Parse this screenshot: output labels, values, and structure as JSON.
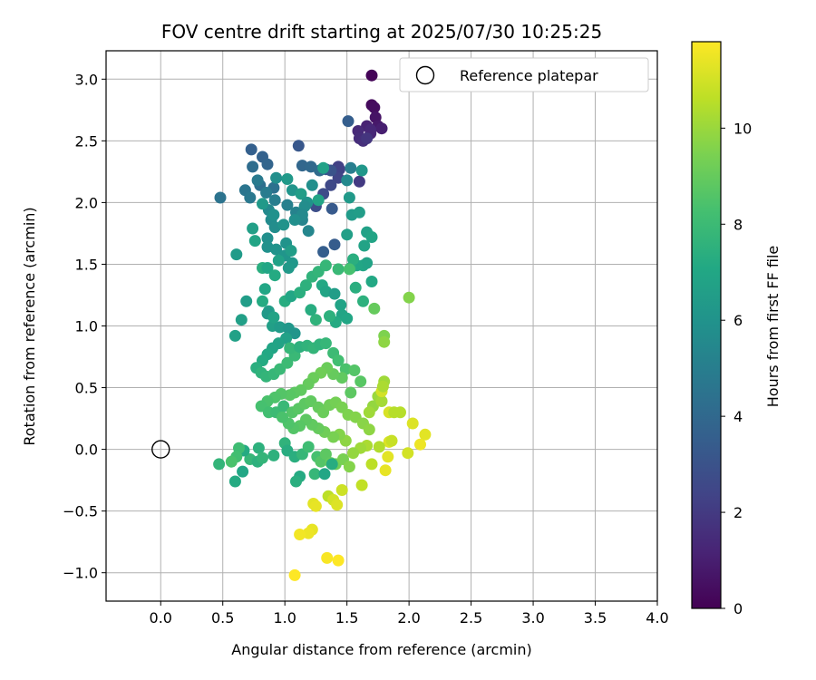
{
  "chart_data": {
    "type": "scatter",
    "title": "FOV centre drift starting at 2025/07/30 10:25:25",
    "xlabel": "Angular distance from reference (arcmin)",
    "ylabel": "Rotation from reference (arcmin)",
    "xlim": [
      -0.44,
      4.0
    ],
    "ylim": [
      -1.23,
      3.23
    ],
    "xticks": [
      "0.0",
      "0.5",
      "1.0",
      "1.5",
      "2.0",
      "2.5",
      "3.0",
      "3.5",
      "4.0"
    ],
    "yticks": [
      "−1.0",
      "−0.5",
      "0.0",
      "0.5",
      "1.0",
      "1.5",
      "2.0",
      "2.5",
      "3.0"
    ],
    "grid": true,
    "legend": {
      "position": "top-right",
      "entries": [
        "Reference platepar"
      ]
    },
    "reference_point": {
      "label": "Reference platepar",
      "x": 0.0,
      "y": 0.0,
      "marker": "open-circle"
    },
    "colorbar": {
      "label": "Hours from first FF file",
      "range": [
        0,
        11.8
      ],
      "ticks": [
        "0",
        "2",
        "4",
        "6",
        "8",
        "10"
      ],
      "colormap": "viridis"
    },
    "points": [
      [
        1.7,
        3.03,
        0.1
      ],
      [
        1.7,
        2.79,
        0.3
      ],
      [
        1.72,
        2.77,
        0.4
      ],
      [
        1.73,
        2.69,
        0.6
      ],
      [
        1.75,
        2.62,
        0.8
      ],
      [
        1.78,
        2.6,
        1.0
      ],
      [
        1.66,
        2.62,
        1.1
      ],
      [
        1.69,
        2.56,
        1.2
      ],
      [
        1.59,
        2.58,
        1.4
      ],
      [
        1.6,
        2.52,
        1.5
      ],
      [
        1.63,
        2.5,
        1.6
      ],
      [
        1.69,
        2.59,
        1.3
      ],
      [
        1.66,
        2.52,
        1.8
      ],
      [
        1.6,
        2.17,
        2.0
      ],
      [
        1.43,
        2.29,
        2.2
      ],
      [
        1.44,
        2.27,
        2.3
      ],
      [
        1.43,
        2.2,
        2.4
      ],
      [
        1.37,
        2.14,
        2.6
      ],
      [
        1.31,
        2.07,
        2.7
      ],
      [
        1.25,
        1.97,
        2.8
      ],
      [
        1.37,
        2.26,
        3.0
      ],
      [
        1.33,
        2.27,
        3.1
      ],
      [
        1.11,
        2.46,
        3.2
      ],
      [
        1.38,
        1.95,
        3.3
      ],
      [
        1.4,
        1.66,
        3.4
      ],
      [
        1.31,
        1.6,
        3.5
      ],
      [
        0.73,
        2.43,
        3.6
      ],
      [
        0.82,
        2.37,
        3.7
      ],
      [
        0.86,
        2.31,
        3.8
      ],
      [
        1.14,
        2.3,
        3.9
      ],
      [
        1.21,
        2.29,
        4.0
      ],
      [
        1.28,
        2.26,
        4.1
      ],
      [
        0.74,
        2.29,
        4.2
      ],
      [
        0.8,
        2.14,
        4.3
      ],
      [
        0.91,
        2.12,
        4.4
      ],
      [
        0.48,
        2.04,
        4.5
      ],
      [
        0.68,
        2.1,
        4.6
      ],
      [
        0.72,
        2.04,
        4.7
      ],
      [
        0.78,
        2.18,
        4.8
      ],
      [
        0.85,
        2.08,
        4.9
      ],
      [
        0.92,
        2.02,
        5.0
      ],
      [
        1.02,
        1.98,
        5.1
      ],
      [
        1.09,
        1.92,
        5.2
      ],
      [
        1.14,
        1.86,
        5.3
      ],
      [
        1.19,
        1.77,
        5.4
      ],
      [
        0.87,
        1.94,
        5.5
      ],
      [
        0.89,
        1.86,
        5.6
      ],
      [
        0.92,
        1.8,
        5.7
      ],
      [
        0.86,
        1.71,
        5.8
      ],
      [
        0.86,
        1.64,
        5.9
      ],
      [
        0.93,
        1.62,
        6.0
      ],
      [
        1.0,
        1.57,
        6.1
      ],
      [
        1.06,
        1.51,
        6.2
      ],
      [
        1.03,
        1.47,
        6.3
      ],
      [
        0.61,
        1.58,
        6.4
      ],
      [
        0.69,
        1.2,
        6.5
      ],
      [
        0.65,
        1.05,
        6.6
      ],
      [
        0.6,
        0.92,
        6.7
      ],
      [
        0.87,
        1.12,
        6.5
      ],
      [
        0.9,
        1.0,
        6.6
      ],
      [
        1.51,
        2.66,
        3.5
      ],
      [
        1.53,
        2.28,
        5.0
      ],
      [
        1.5,
        2.18,
        5.5
      ],
      [
        1.62,
        2.26,
        6.2
      ],
      [
        1.52,
        2.04,
        6.3
      ],
      [
        1.54,
        1.9,
        6.4
      ],
      [
        1.6,
        1.92,
        6.5
      ],
      [
        1.5,
        1.74,
        6.6
      ],
      [
        1.66,
        1.76,
        6.7
      ],
      [
        1.64,
        1.65,
        6.8
      ],
      [
        1.7,
        1.72,
        6.9
      ],
      [
        1.63,
        1.49,
        7.0
      ],
      [
        1.66,
        1.51,
        6.8
      ],
      [
        1.7,
        1.36,
        7.1
      ],
      [
        1.58,
        1.49,
        7.0
      ],
      [
        1.53,
        1.47,
        7.2
      ],
      [
        1.55,
        1.54,
        7.4
      ],
      [
        1.57,
        1.31,
        7.4
      ],
      [
        1.63,
        1.2,
        7.5
      ],
      [
        1.72,
        1.14,
        9.0
      ],
      [
        1.3,
        1.33,
        7.1
      ],
      [
        1.33,
        1.28,
        6.9
      ],
      [
        1.4,
        1.26,
        6.5
      ],
      [
        1.45,
        1.17,
        6.8
      ],
      [
        1.46,
        1.09,
        6.9
      ],
      [
        1.5,
        1.06,
        7.0
      ],
      [
        1.41,
        1.03,
        7.2
      ],
      [
        1.36,
        1.08,
        7.5
      ],
      [
        1.25,
        1.05,
        7.6
      ],
      [
        1.21,
        1.13,
        7.3
      ],
      [
        0.84,
        1.3,
        7.0
      ],
      [
        0.82,
        1.2,
        7.2
      ],
      [
        0.86,
        1.1,
        6.3
      ],
      [
        0.91,
        1.07,
        6.8
      ],
      [
        0.96,
        0.99,
        6.4
      ],
      [
        1.03,
        0.98,
        6.2
      ],
      [
        1.08,
        0.94,
        6.1
      ],
      [
        1.01,
        0.9,
        6.7
      ],
      [
        0.95,
        0.86,
        6.8
      ],
      [
        0.9,
        0.82,
        6.9
      ],
      [
        0.86,
        0.77,
        7.1
      ],
      [
        0.82,
        0.72,
        7.2
      ],
      [
        0.77,
        0.66,
        7.4
      ],
      [
        0.81,
        0.62,
        7.6
      ],
      [
        0.85,
        0.59,
        7.7
      ],
      [
        0.91,
        0.61,
        7.8
      ],
      [
        0.96,
        0.65,
        7.9
      ],
      [
        1.02,
        0.7,
        8.0
      ],
      [
        1.08,
        0.76,
        7.9
      ],
      [
        1.04,
        0.82,
        7.8
      ],
      [
        1.12,
        0.83,
        7.5
      ],
      [
        1.18,
        0.84,
        7.6
      ],
      [
        1.23,
        0.82,
        7.7
      ],
      [
        1.28,
        0.85,
        7.6
      ],
      [
        1.33,
        0.86,
        7.8
      ],
      [
        1.39,
        0.78,
        8.0
      ],
      [
        1.43,
        0.72,
        8.2
      ],
      [
        1.49,
        0.65,
        8.4
      ],
      [
        1.56,
        0.64,
        8.6
      ],
      [
        1.61,
        0.55,
        8.7
      ],
      [
        1.53,
        0.46,
        8.8
      ],
      [
        1.46,
        0.58,
        8.9
      ],
      [
        1.39,
        0.61,
        9.0
      ],
      [
        1.34,
        0.66,
        9.1
      ],
      [
        1.29,
        0.62,
        9.2
      ],
      [
        1.23,
        0.58,
        9.1
      ],
      [
        1.19,
        0.53,
        9.0
      ],
      [
        1.13,
        0.48,
        8.9
      ],
      [
        1.08,
        0.46,
        8.8
      ],
      [
        1.04,
        0.44,
        8.7
      ],
      [
        0.97,
        0.45,
        8.6
      ],
      [
        0.92,
        0.42,
        8.5
      ],
      [
        0.86,
        0.39,
        8.4
      ],
      [
        0.81,
        0.35,
        8.3
      ],
      [
        0.87,
        0.3,
        8.2
      ],
      [
        0.93,
        0.3,
        8.0
      ],
      [
        0.99,
        0.35,
        7.9
      ],
      [
        1.06,
        0.3,
        8.6
      ],
      [
        1.11,
        0.33,
        8.7
      ],
      [
        1.16,
        0.37,
        8.8
      ],
      [
        1.21,
        0.39,
        8.9
      ],
      [
        1.27,
        0.34,
        9.0
      ],
      [
        1.31,
        0.3,
        9.1
      ],
      [
        1.36,
        0.36,
        9.2
      ],
      [
        1.41,
        0.38,
        9.3
      ],
      [
        1.46,
        0.34,
        9.4
      ],
      [
        1.51,
        0.28,
        9.5
      ],
      [
        1.57,
        0.26,
        9.6
      ],
      [
        1.63,
        0.21,
        9.7
      ],
      [
        1.68,
        0.16,
        9.8
      ],
      [
        1.71,
        0.35,
        9.9
      ],
      [
        1.75,
        0.43,
        10.0
      ],
      [
        1.78,
        0.39,
        10.2
      ],
      [
        1.78,
        0.47,
        11.0
      ],
      [
        1.8,
        0.55,
        10.1
      ],
      [
        1.79,
        0.51,
        10.3
      ],
      [
        1.84,
        0.3,
        11.1
      ],
      [
        1.93,
        0.3,
        10.5
      ],
      [
        2.03,
        0.21,
        11.2
      ],
      [
        2.13,
        0.12,
        11.3
      ],
      [
        2.09,
        0.04,
        11.5
      ],
      [
        1.99,
        -0.03,
        11.0
      ],
      [
        1.84,
        0.06,
        11.2
      ],
      [
        1.86,
        0.07,
        10.8
      ],
      [
        1.83,
        -0.06,
        11.3
      ],
      [
        1.81,
        -0.17,
        11.4
      ],
      [
        1.7,
        -0.12,
        10.6
      ],
      [
        1.76,
        0.02,
        10.4
      ],
      [
        1.66,
        0.03,
        10.3
      ],
      [
        1.61,
        0.01,
        10.1
      ],
      [
        1.55,
        -0.03,
        9.9
      ],
      [
        1.49,
        0.07,
        9.8
      ],
      [
        1.44,
        0.12,
        9.6
      ],
      [
        1.39,
        0.1,
        9.4
      ],
      [
        1.32,
        0.14,
        9.2
      ],
      [
        1.27,
        0.17,
        9.0
      ],
      [
        1.22,
        0.2,
        8.9
      ],
      [
        1.17,
        0.24,
        8.8
      ],
      [
        1.12,
        0.19,
        8.7
      ],
      [
        1.07,
        0.17,
        8.6
      ],
      [
        1.03,
        0.21,
        8.5
      ],
      [
        0.98,
        0.26,
        8.4
      ],
      [
        1.0,
        0.05,
        7.6
      ],
      [
        1.02,
        -0.01,
        7.3
      ],
      [
        1.08,
        -0.06,
        7.4
      ],
      [
        1.14,
        -0.04,
        7.8
      ],
      [
        1.19,
        0.02,
        8.1
      ],
      [
        1.26,
        -0.06,
        8.3
      ],
      [
        1.29,
        -0.1,
        8.6
      ],
      [
        1.33,
        -0.04,
        8.8
      ],
      [
        1.37,
        -0.11,
        9.0
      ],
      [
        1.41,
        -0.12,
        9.2
      ],
      [
        1.47,
        -0.08,
        9.4
      ],
      [
        1.52,
        -0.14,
        9.6
      ],
      [
        0.79,
        0.01,
        7.5
      ],
      [
        0.72,
        -0.08,
        7.8
      ],
      [
        0.67,
        -0.01,
        7.2
      ],
      [
        0.63,
        0.01,
        8.1
      ],
      [
        0.61,
        -0.06,
        8.2
      ],
      [
        0.57,
        -0.1,
        8.4
      ],
      [
        0.66,
        -0.18,
        7.0
      ],
      [
        0.47,
        -0.12,
        7.7
      ],
      [
        0.6,
        -0.26,
        7.2
      ],
      [
        0.78,
        -0.1,
        7.5
      ],
      [
        0.82,
        -0.07,
        7.7
      ],
      [
        0.91,
        -0.05,
        7.5
      ],
      [
        1.12,
        -0.22,
        7.2
      ],
      [
        1.09,
        -0.26,
        7.4
      ],
      [
        1.24,
        -0.2,
        7.8
      ],
      [
        1.32,
        -0.2,
        7.0
      ],
      [
        1.38,
        -0.12,
        7.3
      ],
      [
        1.35,
        -0.38,
        10.6
      ],
      [
        1.46,
        -0.33,
        10.9
      ],
      [
        1.39,
        -0.41,
        11.0
      ],
      [
        1.42,
        -0.45,
        11.2
      ],
      [
        1.23,
        -0.44,
        11.3
      ],
      [
        1.25,
        -0.46,
        11.4
      ],
      [
        1.62,
        -0.29,
        10.7
      ],
      [
        1.22,
        -0.65,
        11.4
      ],
      [
        1.19,
        -0.68,
        11.5
      ],
      [
        1.12,
        -0.69,
        11.6
      ],
      [
        1.34,
        -0.88,
        11.7
      ],
      [
        1.43,
        -0.9,
        11.8
      ],
      [
        1.08,
        -1.02,
        11.8
      ],
      [
        1.0,
        1.2,
        7.3
      ],
      [
        1.05,
        1.24,
        7.0
      ],
      [
        1.12,
        1.27,
        7.4
      ],
      [
        1.17,
        1.33,
        7.5
      ],
      [
        1.22,
        1.4,
        7.6
      ],
      [
        1.27,
        1.44,
        7.7
      ],
      [
        1.33,
        1.49,
        7.8
      ],
      [
        1.43,
        1.46,
        7.9
      ],
      [
        1.52,
        1.46,
        8.3
      ],
      [
        2.0,
        1.23,
        9.6
      ],
      [
        1.8,
        0.92,
        9.5
      ],
      [
        1.8,
        0.87,
        9.8
      ],
      [
        1.88,
        0.3,
        10.5
      ],
      [
        1.68,
        0.3,
        10.1
      ],
      [
        0.93,
        2.2,
        5.8
      ],
      [
        1.02,
        2.19,
        6.3
      ],
      [
        1.06,
        2.1,
        6.1
      ],
      [
        1.13,
        2.07,
        6.5
      ],
      [
        1.18,
        2.0,
        6.0
      ],
      [
        1.27,
        2.02,
        6.9
      ],
      [
        1.31,
        2.28,
        6.7
      ],
      [
        1.22,
        2.14,
        5.8
      ],
      [
        1.16,
        1.97,
        5.7
      ],
      [
        1.14,
        1.9,
        5.5
      ],
      [
        1.08,
        1.86,
        5.8
      ],
      [
        0.99,
        1.82,
        6.0
      ],
      [
        0.91,
        1.9,
        5.9
      ],
      [
        0.82,
        1.99,
        6.3
      ],
      [
        0.74,
        1.79,
        6.6
      ],
      [
        0.76,
        1.69,
        6.9
      ],
      [
        0.82,
        1.47,
        7.4
      ],
      [
        0.86,
        1.47,
        7.0
      ],
      [
        0.92,
        1.41,
        7.2
      ],
      [
        0.95,
        1.53,
        6.7
      ],
      [
        1.01,
        1.67,
        6.0
      ],
      [
        1.05,
        1.61,
        6.5
      ]
    ]
  }
}
